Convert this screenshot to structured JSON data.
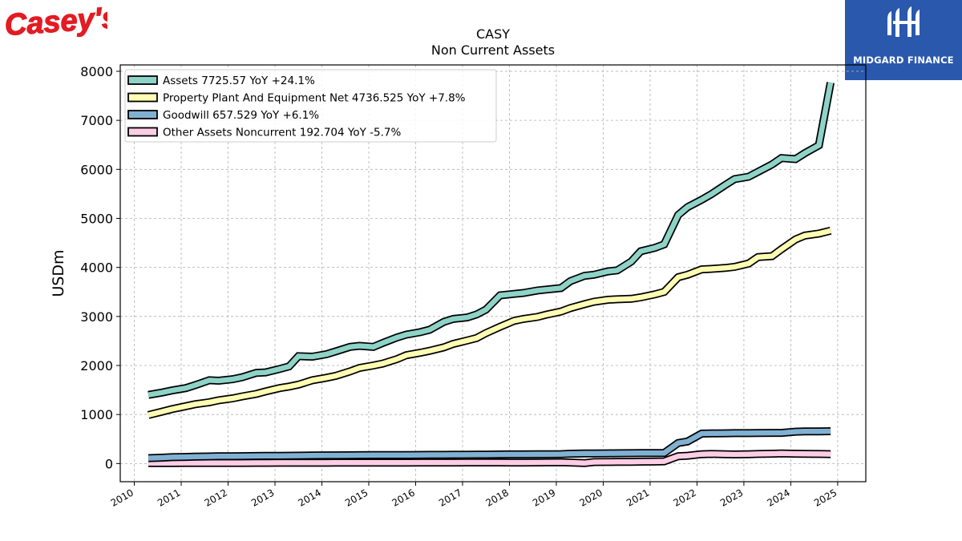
{
  "logos": {
    "left": {
      "text": "Casey's",
      "color": "#e31b23"
    },
    "right": {
      "text": "MIDGARD FINANCE",
      "background": "#2a58ad"
    }
  },
  "chart_data": {
    "type": "line",
    "title": "CASY",
    "subtitle": "Non Current  Assets",
    "xlabel": "",
    "ylabel": "USDm",
    "xlim": [
      2009.7,
      2025.6
    ],
    "ylim": [
      -370,
      8130
    ],
    "x_ticks": [
      2010,
      2011,
      2012,
      2013,
      2014,
      2015,
      2016,
      2017,
      2018,
      2019,
      2020,
      2021,
      2022,
      2023,
      2024,
      2025
    ],
    "x_tick_labels": [
      "2010",
      "2011",
      "2012",
      "2013",
      "2014",
      "2015",
      "2016",
      "2017",
      "2018",
      "2019",
      "2020",
      "2021",
      "2022",
      "2023",
      "2024",
      "2025"
    ],
    "y_ticks": [
      0,
      1000,
      2000,
      3000,
      4000,
      5000,
      6000,
      7000,
      8000
    ],
    "y_tick_labels": [
      "0",
      "1000",
      "2000",
      "3000",
      "4000",
      "5000",
      "6000",
      "7000",
      "8000"
    ],
    "grid": true,
    "legend_position": "top-left",
    "series": [
      {
        "name": "Assets  7725.57 YoY +24.1%",
        "color": "#8dd3c7",
        "points": [
          [
            2010.3,
            1400
          ],
          [
            2010.6,
            1450
          ],
          [
            2010.8,
            1490
          ],
          [
            2011.1,
            1540
          ],
          [
            2011.3,
            1600
          ],
          [
            2011.6,
            1700
          ],
          [
            2011.8,
            1690
          ],
          [
            2012.1,
            1720
          ],
          [
            2012.3,
            1760
          ],
          [
            2012.6,
            1850
          ],
          [
            2012.8,
            1860
          ],
          [
            2013.1,
            1930
          ],
          [
            2013.3,
            1980
          ],
          [
            2013.5,
            2190
          ],
          [
            2013.8,
            2180
          ],
          [
            2014.1,
            2230
          ],
          [
            2014.3,
            2290
          ],
          [
            2014.6,
            2380
          ],
          [
            2014.8,
            2400
          ],
          [
            2015.1,
            2380
          ],
          [
            2015.3,
            2460
          ],
          [
            2015.6,
            2570
          ],
          [
            2015.8,
            2630
          ],
          [
            2016.1,
            2680
          ],
          [
            2016.3,
            2730
          ],
          [
            2016.6,
            2890
          ],
          [
            2016.8,
            2950
          ],
          [
            2017.1,
            2980
          ],
          [
            2017.3,
            3040
          ],
          [
            2017.5,
            3140
          ],
          [
            2017.8,
            3430
          ],
          [
            2018.1,
            3460
          ],
          [
            2018.3,
            3480
          ],
          [
            2018.6,
            3530
          ],
          [
            2018.8,
            3550
          ],
          [
            2019.1,
            3580
          ],
          [
            2019.3,
            3720
          ],
          [
            2019.6,
            3830
          ],
          [
            2019.8,
            3850
          ],
          [
            2020.1,
            3920
          ],
          [
            2020.3,
            3940
          ],
          [
            2020.6,
            4120
          ],
          [
            2020.8,
            4330
          ],
          [
            2021.1,
            4400
          ],
          [
            2021.3,
            4470
          ],
          [
            2021.6,
            5070
          ],
          [
            2021.8,
            5230
          ],
          [
            2022.1,
            5380
          ],
          [
            2022.3,
            5490
          ],
          [
            2022.6,
            5680
          ],
          [
            2022.8,
            5800
          ],
          [
            2023.1,
            5850
          ],
          [
            2023.3,
            5950
          ],
          [
            2023.6,
            6100
          ],
          [
            2023.8,
            6230
          ],
          [
            2024.1,
            6210
          ],
          [
            2024.3,
            6330
          ],
          [
            2024.6,
            6490
          ],
          [
            2024.85,
            7770
          ]
        ]
      },
      {
        "name": "Property Plant And Equipment Net  4736.525 YoY +7.8%",
        "color": "#ffffb3",
        "points": [
          [
            2010.3,
            990
          ],
          [
            2010.6,
            1060
          ],
          [
            2010.8,
            1110
          ],
          [
            2011.1,
            1170
          ],
          [
            2011.3,
            1210
          ],
          [
            2011.6,
            1250
          ],
          [
            2011.8,
            1290
          ],
          [
            2012.1,
            1330
          ],
          [
            2012.3,
            1370
          ],
          [
            2012.6,
            1420
          ],
          [
            2012.8,
            1470
          ],
          [
            2013.1,
            1540
          ],
          [
            2013.3,
            1570
          ],
          [
            2013.5,
            1610
          ],
          [
            2013.8,
            1700
          ],
          [
            2014.1,
            1750
          ],
          [
            2014.3,
            1790
          ],
          [
            2014.6,
            1880
          ],
          [
            2014.8,
            1950
          ],
          [
            2015.1,
            2000
          ],
          [
            2015.3,
            2040
          ],
          [
            2015.6,
            2130
          ],
          [
            2015.8,
            2210
          ],
          [
            2016.1,
            2260
          ],
          [
            2016.3,
            2300
          ],
          [
            2016.6,
            2370
          ],
          [
            2016.8,
            2440
          ],
          [
            2017.1,
            2510
          ],
          [
            2017.3,
            2560
          ],
          [
            2017.5,
            2660
          ],
          [
            2017.8,
            2790
          ],
          [
            2018.1,
            2910
          ],
          [
            2018.3,
            2950
          ],
          [
            2018.6,
            2990
          ],
          [
            2018.8,
            3040
          ],
          [
            2019.1,
            3100
          ],
          [
            2019.3,
            3170
          ],
          [
            2019.6,
            3250
          ],
          [
            2019.8,
            3300
          ],
          [
            2020.1,
            3340
          ],
          [
            2020.3,
            3350
          ],
          [
            2020.6,
            3360
          ],
          [
            2020.8,
            3390
          ],
          [
            2021.1,
            3450
          ],
          [
            2021.3,
            3500
          ],
          [
            2021.6,
            3800
          ],
          [
            2021.8,
            3850
          ],
          [
            2022.1,
            3960
          ],
          [
            2022.3,
            3970
          ],
          [
            2022.6,
            3990
          ],
          [
            2022.8,
            4010
          ],
          [
            2023.1,
            4080
          ],
          [
            2023.3,
            4210
          ],
          [
            2023.6,
            4230
          ],
          [
            2023.8,
            4370
          ],
          [
            2024.1,
            4570
          ],
          [
            2024.3,
            4650
          ],
          [
            2024.6,
            4690
          ],
          [
            2024.85,
            4750
          ]
        ]
      },
      {
        "name": "Goodwill  657.529 YoY +6.1%",
        "color": "#80b1d3",
        "points": [
          [
            2010.3,
            110
          ],
          [
            2010.6,
            120
          ],
          [
            2010.8,
            130
          ],
          [
            2011.1,
            135
          ],
          [
            2011.3,
            140
          ],
          [
            2011.6,
            145
          ],
          [
            2011.8,
            148
          ],
          [
            2012.1,
            150
          ],
          [
            2012.3,
            152
          ],
          [
            2012.6,
            155
          ],
          [
            2012.8,
            156
          ],
          [
            2013.1,
            158
          ],
          [
            2013.3,
            160
          ],
          [
            2013.5,
            162
          ],
          [
            2013.8,
            165
          ],
          [
            2014.1,
            167
          ],
          [
            2014.3,
            168
          ],
          [
            2014.6,
            170
          ],
          [
            2014.8,
            171
          ],
          [
            2015.1,
            172
          ],
          [
            2015.3,
            173
          ],
          [
            2015.6,
            174
          ],
          [
            2015.8,
            175
          ],
          [
            2016.1,
            176
          ],
          [
            2016.3,
            177
          ],
          [
            2016.6,
            178
          ],
          [
            2016.8,
            179
          ],
          [
            2017.1,
            180
          ],
          [
            2017.3,
            181
          ],
          [
            2017.5,
            182
          ],
          [
            2017.8,
            185
          ],
          [
            2018.1,
            187
          ],
          [
            2018.3,
            188
          ],
          [
            2018.6,
            189
          ],
          [
            2018.8,
            190
          ],
          [
            2019.1,
            192
          ],
          [
            2019.3,
            200
          ],
          [
            2019.6,
            205
          ],
          [
            2019.8,
            207
          ],
          [
            2020.1,
            208
          ],
          [
            2020.3,
            210
          ],
          [
            2020.6,
            212
          ],
          [
            2020.8,
            213
          ],
          [
            2021.1,
            214
          ],
          [
            2021.3,
            215
          ],
          [
            2021.6,
            420
          ],
          [
            2021.8,
            450
          ],
          [
            2022.1,
            610
          ],
          [
            2022.3,
            615
          ],
          [
            2022.6,
            618
          ],
          [
            2022.8,
            620
          ],
          [
            2023.1,
            620
          ],
          [
            2023.3,
            622
          ],
          [
            2023.6,
            625
          ],
          [
            2023.8,
            625
          ],
          [
            2024.1,
            650
          ],
          [
            2024.3,
            655
          ],
          [
            2024.6,
            657
          ],
          [
            2024.85,
            660
          ]
        ]
      },
      {
        "name": "Other Assets Noncurrent  192.704 YoY -5.7%",
        "color": "#fccde5",
        "points": [
          [
            2010.3,
            10
          ],
          [
            2010.6,
            10
          ],
          [
            2010.8,
            10
          ],
          [
            2011.1,
            12
          ],
          [
            2011.3,
            12
          ],
          [
            2011.6,
            12
          ],
          [
            2011.8,
            13
          ],
          [
            2012.1,
            13
          ],
          [
            2012.3,
            13
          ],
          [
            2012.6,
            14
          ],
          [
            2012.8,
            14
          ],
          [
            2013.1,
            15
          ],
          [
            2013.3,
            15
          ],
          [
            2013.5,
            15
          ],
          [
            2013.8,
            16
          ],
          [
            2014.1,
            16
          ],
          [
            2014.3,
            17
          ],
          [
            2014.6,
            17
          ],
          [
            2014.8,
            18
          ],
          [
            2015.1,
            18
          ],
          [
            2015.3,
            18
          ],
          [
            2015.6,
            19
          ],
          [
            2015.8,
            19
          ],
          [
            2016.1,
            20
          ],
          [
            2016.3,
            20
          ],
          [
            2016.6,
            21
          ],
          [
            2016.8,
            21
          ],
          [
            2017.1,
            22
          ],
          [
            2017.3,
            22
          ],
          [
            2017.5,
            23
          ],
          [
            2017.8,
            23
          ],
          [
            2018.1,
            20
          ],
          [
            2018.3,
            20
          ],
          [
            2018.6,
            22
          ],
          [
            2018.8,
            24
          ],
          [
            2019.1,
            25
          ],
          [
            2019.3,
            20
          ],
          [
            2019.6,
            10
          ],
          [
            2019.8,
            30
          ],
          [
            2020.1,
            32
          ],
          [
            2020.3,
            34
          ],
          [
            2020.6,
            36
          ],
          [
            2020.8,
            38
          ],
          [
            2021.1,
            40
          ],
          [
            2021.3,
            45
          ],
          [
            2021.6,
            150
          ],
          [
            2021.8,
            160
          ],
          [
            2022.1,
            190
          ],
          [
            2022.3,
            195
          ],
          [
            2022.6,
            190
          ],
          [
            2022.8,
            185
          ],
          [
            2023.1,
            190
          ],
          [
            2023.3,
            195
          ],
          [
            2023.6,
            200
          ],
          [
            2023.8,
            205
          ],
          [
            2024.1,
            200
          ],
          [
            2024.3,
            198
          ],
          [
            2024.6,
            195
          ],
          [
            2024.85,
            193
          ]
        ]
      }
    ]
  }
}
